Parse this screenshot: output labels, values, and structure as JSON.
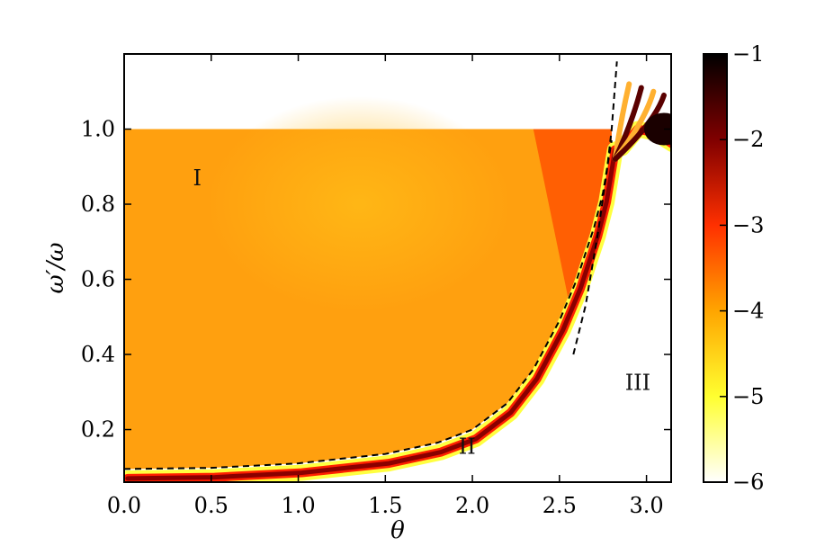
{
  "chart_data": {
    "type": "heatmap",
    "title": "",
    "xlabel": "θ",
    "ylabel": "ω′/ω",
    "xlim": [
      0.0,
      3.1416
    ],
    "ylim": [
      0.06,
      1.2
    ],
    "x_ticks": [
      0.0,
      0.5,
      1.0,
      1.5,
      2.0,
      2.5,
      3.0
    ],
    "x_tick_labels": [
      "0.0",
      "0.5",
      "1.0",
      "1.5",
      "2.0",
      "2.5",
      "3.0"
    ],
    "y_ticks": [
      0.2,
      0.4,
      0.6,
      0.8,
      1.0
    ],
    "y_tick_labels": [
      "0.2",
      "0.4",
      "0.6",
      "0.8",
      "1.0"
    ],
    "colorbar": {
      "range": [
        -6,
        -1
      ],
      "ticks": [
        -6,
        -5,
        -4,
        -3,
        -2,
        -1
      ],
      "tick_labels": [
        "−6",
        "−5",
        "−4",
        "−3",
        "−2",
        "−1"
      ],
      "colors": [
        "#ffffff",
        "#ffff30",
        "#ffa500",
        "#ff3000",
        "#800000",
        "#000000"
      ]
    },
    "dashed_curves": [
      {
        "points": [
          [
            0.0,
            0.095
          ],
          [
            0.5,
            0.098
          ],
          [
            1.0,
            0.11
          ],
          [
            1.5,
            0.135
          ],
          [
            1.8,
            0.165
          ],
          [
            2.0,
            0.2
          ],
          [
            2.2,
            0.27
          ],
          [
            2.35,
            0.36
          ],
          [
            2.5,
            0.49
          ],
          [
            2.6,
            0.6
          ],
          [
            2.7,
            0.74
          ],
          [
            2.75,
            0.83
          ],
          [
            2.8,
            0.97
          ]
        ]
      },
      {
        "points": [
          [
            2.58,
            0.4
          ],
          [
            2.65,
            0.53
          ],
          [
            2.72,
            0.72
          ],
          [
            2.77,
            0.88
          ],
          [
            2.8,
            1.0
          ],
          [
            2.83,
            1.18
          ]
        ]
      }
    ],
    "regions": [
      {
        "label": "I",
        "x": 0.42,
        "y": 0.87
      },
      {
        "label": "II",
        "x": 1.97,
        "y": 0.155
      },
      {
        "label": "III",
        "x": 2.95,
        "y": 0.325
      }
    ]
  }
}
